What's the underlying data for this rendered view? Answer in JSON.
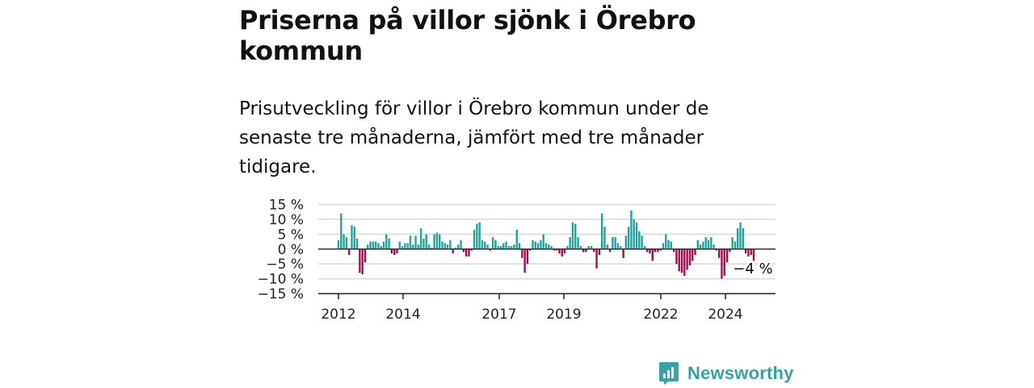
{
  "title": "Priserna på villor sjönk i Örebro kommun",
  "subtitle": "Prisutveckling för villor i Örebro kommun under de senaste tre månaderna, jämfört med tre månader tidigare.",
  "brand": {
    "name": "Newsworthy",
    "color": "#39a2a3"
  },
  "colors": {
    "positive": "#1fa39b",
    "negative": "#a30d4f",
    "grid": "#d9d9d9",
    "axis": "#222222"
  },
  "chart_data": {
    "type": "bar",
    "ylim": [
      -15,
      15
    ],
    "yticks": [
      15,
      10,
      5,
      0,
      -5,
      -10,
      -15
    ],
    "ytick_labels": [
      "15 %",
      "10 %",
      "5 %",
      "0 %",
      "−5 %",
      "−10 %",
      "−15 %"
    ],
    "xtick_labels": [
      "2012",
      "2014",
      "2017",
      "2019",
      "2022",
      "2024"
    ],
    "grid": true,
    "annotation": "−4 %",
    "series": [
      {
        "values": [
          3,
          12,
          5,
          4,
          -2,
          8,
          7.5,
          3.5,
          -8,
          -8.5,
          -4.5,
          1.5,
          2.5,
          2.5,
          2.5,
          2,
          1,
          2.5,
          5,
          3.5,
          -1.5,
          -2,
          -1.5,
          2.5,
          1,
          2,
          2,
          4.5,
          1.5,
          4.5,
          1.5,
          7,
          3.5,
          5,
          1.5,
          0.5,
          5,
          5.5,
          5,
          2.5,
          2,
          1.5,
          3,
          -1.5,
          0.5,
          1.5,
          3,
          -1,
          -2.5,
          -2.5,
          -0.5,
          6.5,
          8.5,
          9,
          3,
          2.5,
          1.5,
          -0.5,
          4,
          3,
          1,
          1,
          2,
          2.5,
          1,
          1,
          1.5,
          6.5,
          2,
          -3,
          -8,
          -5,
          -0.5,
          3,
          2.5,
          2,
          3,
          5,
          2,
          1.5,
          1,
          -0.5,
          -0.5,
          -1.5,
          -2.5,
          -1.5,
          1,
          4,
          9,
          8.5,
          4,
          1,
          -1,
          -1,
          1,
          1,
          -1,
          -6.5,
          -2,
          12,
          7.5,
          1.5,
          -1,
          4,
          4,
          2,
          1,
          -3,
          4.5,
          7.5,
          13,
          10,
          9,
          6,
          4.5,
          1,
          -1,
          -1.5,
          -4,
          -1,
          -1,
          -0.5,
          2,
          5,
          3,
          2.5,
          -1,
          -5,
          -7.5,
          -8,
          -9,
          -7,
          -5.5,
          -4,
          -2,
          3,
          1.5,
          2.5,
          4,
          3,
          4,
          1.5,
          -0.5,
          -3,
          -10,
          -9,
          -4.5,
          -1,
          4,
          2.5,
          7,
          9,
          7,
          -1.5,
          -2.5,
          -2,
          -4
        ]
      }
    ]
  }
}
